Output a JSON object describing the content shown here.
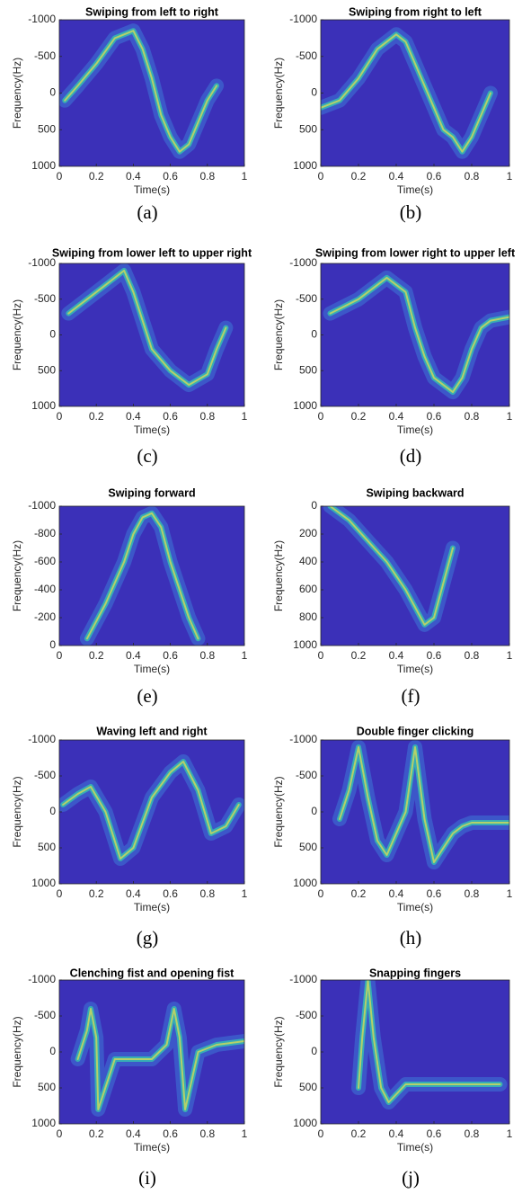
{
  "chart_data": [
    {
      "type": "spectrogram",
      "title": "Swiping from left to right",
      "caption": "(a)",
      "xlabel": "Time(s)",
      "ylabel": "Frequency(Hz)",
      "xlim": [
        0,
        1
      ],
      "xticks": [
        0,
        0.2,
        0.4,
        0.6,
        0.8,
        1
      ],
      "ylim": [
        -1000,
        1000
      ],
      "yticks": [
        -1000,
        -500,
        0,
        500,
        1000
      ],
      "y_reversed": true,
      "background_color": "#3b30b8",
      "glow_color": "#3fa0e8",
      "trace_color": "#e8e04a",
      "x": [
        0.03,
        0.1,
        0.2,
        0.3,
        0.4,
        0.45,
        0.5,
        0.55,
        0.6,
        0.65,
        0.7,
        0.75,
        0.8,
        0.85
      ],
      "values": [
        100,
        -100,
        -400,
        -750,
        -850,
        -600,
        -200,
        300,
        600,
        800,
        700,
        400,
        100,
        -100
      ]
    },
    {
      "type": "spectrogram",
      "title": "Swiping from right to left",
      "caption": "(b)",
      "xlabel": "Time(s)",
      "ylabel": "Frequency(Hz)",
      "xlim": [
        0,
        1
      ],
      "xticks": [
        0,
        0.2,
        0.4,
        0.6,
        0.8,
        1
      ],
      "ylim": [
        -1000,
        1000
      ],
      "yticks": [
        -1000,
        -500,
        0,
        500,
        1000
      ],
      "y_reversed": true,
      "background_color": "#3b30b8",
      "glow_color": "#3fa0e8",
      "trace_color": "#e8e04a",
      "x": [
        0,
        0.1,
        0.2,
        0.3,
        0.4,
        0.45,
        0.5,
        0.55,
        0.6,
        0.65,
        0.7,
        0.75,
        0.8,
        0.85,
        0.9
      ],
      "values": [
        200,
        100,
        -200,
        -600,
        -800,
        -700,
        -400,
        -100,
        200,
        500,
        600,
        800,
        600,
        300,
        0
      ]
    },
    {
      "type": "spectrogram",
      "title": "Swiping from lower left to upper right",
      "caption": "(c)",
      "xlabel": "Time(s)",
      "ylabel": "Frequency(Hz)",
      "xlim": [
        0,
        1
      ],
      "xticks": [
        0,
        0.2,
        0.4,
        0.6,
        0.8,
        1
      ],
      "ylim": [
        -1000,
        1000
      ],
      "yticks": [
        -1000,
        -500,
        0,
        500,
        1000
      ],
      "y_reversed": true,
      "background_color": "#3b30b8",
      "glow_color": "#3fa0e8",
      "trace_color": "#e8e04a",
      "x": [
        0.05,
        0.15,
        0.25,
        0.35,
        0.4,
        0.45,
        0.5,
        0.6,
        0.7,
        0.8,
        0.85,
        0.9
      ],
      "values": [
        -300,
        -500,
        -700,
        -900,
        -600,
        -200,
        200,
        500,
        700,
        550,
        200,
        -100
      ]
    },
    {
      "type": "spectrogram",
      "title": "Swiping from lower right to upper left",
      "caption": "(d)",
      "xlabel": "Time(s)",
      "ylabel": "Frequency(Hz)",
      "xlim": [
        0,
        1
      ],
      "xticks": [
        0,
        0.2,
        0.4,
        0.6,
        0.8,
        1
      ],
      "ylim": [
        -1000,
        1000
      ],
      "yticks": [
        -1000,
        -500,
        0,
        500,
        1000
      ],
      "y_reversed": true,
      "background_color": "#3b30b8",
      "glow_color": "#3fa0e8",
      "trace_color": "#e8e04a",
      "x": [
        0.05,
        0.2,
        0.35,
        0.45,
        0.5,
        0.55,
        0.6,
        0.7,
        0.75,
        0.8,
        0.85,
        0.9,
        1
      ],
      "values": [
        -300,
        -500,
        -800,
        -600,
        -100,
        300,
        600,
        800,
        600,
        200,
        -100,
        -200,
        -250
      ]
    },
    {
      "type": "spectrogram",
      "title": "Swiping forward",
      "caption": "(e)",
      "xlabel": "Time(s)",
      "ylabel": "Frequency(Hz)",
      "xlim": [
        0,
        1
      ],
      "xticks": [
        0,
        0.2,
        0.4,
        0.6,
        0.8,
        1
      ],
      "ylim": [
        -1000,
        0
      ],
      "yticks": [
        -1000,
        -800,
        -600,
        -400,
        -200,
        0
      ],
      "y_reversed": true,
      "background_color": "#3b30b8",
      "glow_color": "#3fa0e8",
      "trace_color": "#e8e04a",
      "x": [
        0.15,
        0.25,
        0.35,
        0.4,
        0.45,
        0.5,
        0.55,
        0.6,
        0.65,
        0.7,
        0.75
      ],
      "values": [
        -50,
        -300,
        -600,
        -800,
        -920,
        -950,
        -850,
        -600,
        -400,
        -200,
        -50
      ]
    },
    {
      "type": "spectrogram",
      "title": "Swiping backward",
      "caption": "(f)",
      "xlabel": "Time(s)",
      "ylabel": "Frequency(Hz)",
      "xlim": [
        0,
        1
      ],
      "xticks": [
        0,
        0.2,
        0.4,
        0.6,
        0.8,
        1
      ],
      "ylim": [
        0,
        1000
      ],
      "yticks": [
        0,
        200,
        400,
        600,
        800,
        1000
      ],
      "y_reversed": true,
      "background_color": "#3b30b8",
      "glow_color": "#3fa0e8",
      "trace_color": "#e8e04a",
      "x": [
        0.05,
        0.15,
        0.25,
        0.35,
        0.45,
        0.55,
        0.6,
        0.65,
        0.7
      ],
      "values": [
        0,
        100,
        250,
        400,
        600,
        850,
        800,
        550,
        300
      ]
    },
    {
      "type": "spectrogram",
      "title": "Waving left and right",
      "caption": "(g)",
      "xlabel": "Time(s)",
      "ylabel": "Frequency(Hz)",
      "xlim": [
        0,
        1
      ],
      "xticks": [
        0,
        0.2,
        0.4,
        0.6,
        0.8,
        1
      ],
      "ylim": [
        -1000,
        1000
      ],
      "yticks": [
        -1000,
        -500,
        0,
        500,
        1000
      ],
      "y_reversed": true,
      "background_color": "#3b30b8",
      "glow_color": "#3fa0e8",
      "trace_color": "#e8e04a",
      "x": [
        0.02,
        0.1,
        0.17,
        0.25,
        0.33,
        0.4,
        0.5,
        0.6,
        0.67,
        0.75,
        0.82,
        0.9,
        0.97
      ],
      "values": [
        -100,
        -250,
        -350,
        0,
        650,
        500,
        -200,
        -550,
        -700,
        -300,
        300,
        200,
        -100
      ]
    },
    {
      "type": "spectrogram",
      "title": "Double finger clicking",
      "caption": "(h)",
      "xlabel": "Time(s)",
      "ylabel": "Frequency(Hz)",
      "xlim": [
        0,
        1
      ],
      "xticks": [
        0,
        0.2,
        0.4,
        0.6,
        0.8,
        1
      ],
      "ylim": [
        -1000,
        1000
      ],
      "yticks": [
        -1000,
        -500,
        0,
        500,
        1000
      ],
      "y_reversed": true,
      "background_color": "#3b30b8",
      "glow_color": "#3fa0e8",
      "trace_color": "#e8e04a",
      "x": [
        0.1,
        0.15,
        0.2,
        0.25,
        0.3,
        0.35,
        0.4,
        0.45,
        0.5,
        0.55,
        0.6,
        0.7,
        0.75,
        0.8,
        0.9,
        1
      ],
      "values": [
        100,
        -300,
        -900,
        -200,
        400,
        600,
        300,
        0,
        -900,
        100,
        700,
        300,
        200,
        150,
        150,
        150
      ]
    },
    {
      "type": "spectrogram",
      "title": "Clenching fist and opening fist",
      "caption": "(i)",
      "xlabel": "Time(s)",
      "ylabel": "Frequency(Hz)",
      "xlim": [
        0,
        1
      ],
      "xticks": [
        0,
        0.2,
        0.4,
        0.6,
        0.8,
        1
      ],
      "ylim": [
        -1000,
        1000
      ],
      "yticks": [
        -1000,
        -500,
        0,
        500,
        1000
      ],
      "y_reversed": true,
      "background_color": "#3b30b8",
      "glow_color": "#3fa0e8",
      "trace_color": "#e8e04a",
      "x": [
        0.1,
        0.15,
        0.17,
        0.2,
        0.21,
        0.3,
        0.5,
        0.58,
        0.62,
        0.65,
        0.68,
        0.75,
        0.85,
        1
      ],
      "values": [
        100,
        -300,
        -600,
        -200,
        800,
        100,
        100,
        -100,
        -600,
        -200,
        800,
        0,
        -100,
        -150
      ]
    },
    {
      "type": "spectrogram",
      "title": "Snapping fingers",
      "caption": "(j)",
      "xlabel": "Time(s)",
      "ylabel": "Frequency(Hz)",
      "xlim": [
        0,
        1
      ],
      "xticks": [
        0,
        0.2,
        0.4,
        0.6,
        0.8,
        1
      ],
      "ylim": [
        -1000,
        1000
      ],
      "yticks": [
        -1000,
        -500,
        0,
        500,
        1000
      ],
      "y_reversed": true,
      "background_color": "#3b30b8",
      "glow_color": "#3fa0e8",
      "trace_color": "#e8e04a",
      "x": [
        0.2,
        0.22,
        0.25,
        0.28,
        0.32,
        0.36,
        0.45,
        0.6,
        0.8,
        0.95
      ],
      "values": [
        500,
        -200,
        -1000,
        -200,
        500,
        700,
        450,
        450,
        450,
        450
      ]
    }
  ]
}
